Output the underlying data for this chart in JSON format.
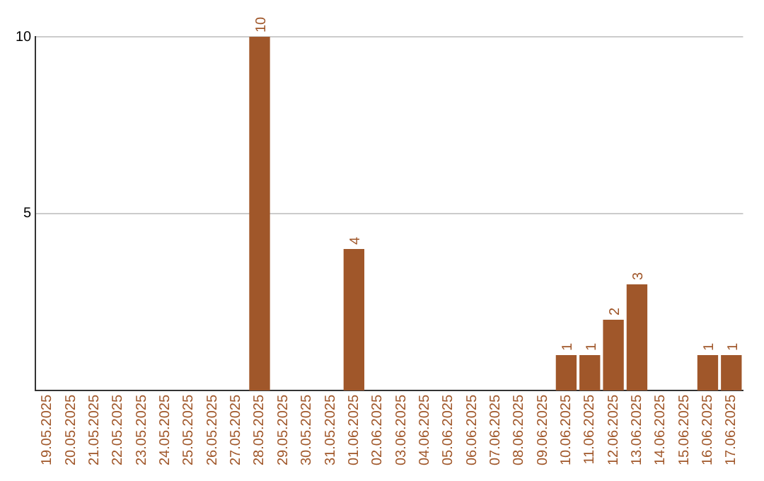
{
  "chart_data": {
    "type": "bar",
    "categories": [
      "19.05.2025",
      "20.05.2025",
      "21.05.2025",
      "22.05.2025",
      "23.05.2025",
      "24.05.2025",
      "25.05.2025",
      "26.05.2025",
      "27.05.2025",
      "28.05.2025",
      "29.05.2025",
      "30.05.2025",
      "31.05.2025",
      "01.06.2025",
      "02.06.2025",
      "03.06.2025",
      "04.06.2025",
      "05.06.2025",
      "06.06.2025",
      "07.06.2025",
      "08.06.2025",
      "09.06.2025",
      "10.06.2025",
      "11.06.2025",
      "12.06.2025",
      "13.06.2025",
      "14.06.2025",
      "15.06.2025",
      "16.06.2025",
      "17.06.2025"
    ],
    "values": [
      0,
      0,
      0,
      0,
      0,
      0,
      0,
      0,
      0,
      10,
      0,
      0,
      0,
      4,
      0,
      0,
      0,
      0,
      0,
      0,
      0,
      0,
      1,
      1,
      2,
      3,
      0,
      0,
      1,
      1
    ],
    "value_labels": [
      null,
      null,
      null,
      null,
      null,
      null,
      null,
      null,
      null,
      "10",
      null,
      null,
      null,
      "4",
      null,
      null,
      null,
      null,
      null,
      null,
      null,
      null,
      "1",
      "1",
      "2",
      "3",
      null,
      null,
      "1",
      "1"
    ],
    "color": "#a0572a",
    "ylim": [
      0,
      10
    ],
    "yticks": [
      5,
      10
    ],
    "grid": "y",
    "legend": false
  }
}
